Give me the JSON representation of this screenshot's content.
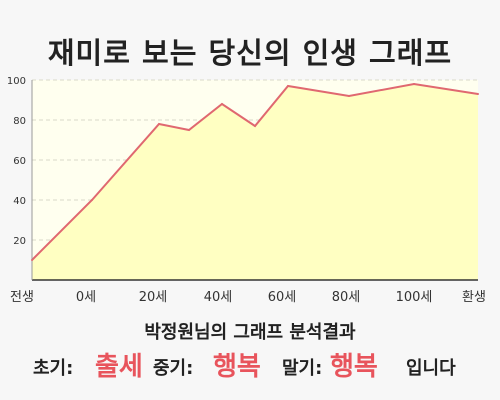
{
  "title": "재미로 보는 당신의 인생 그래프",
  "summary": "박정원님의 그래프 분석결과",
  "result": {
    "early_label": "초기:",
    "early_value": "출세",
    "mid_label": "중기:",
    "mid_value": "행복",
    "late_label": "말기:",
    "late_value": "행복",
    "suffix": "입니다"
  },
  "colors": {
    "line": "#e06870",
    "fill": "#ffffc2",
    "accent": "#e8545c"
  },
  "chart_data": {
    "type": "area",
    "x_ticks": [
      "전생",
      "0세",
      "20세",
      "40세",
      "60세",
      "80세",
      "100세",
      "환생"
    ],
    "y_ticks": [
      20,
      40,
      60,
      80,
      100
    ],
    "ylim": [
      0,
      100
    ],
    "grid": true,
    "points": [
      {
        "x": "전생",
        "y": 10
      },
      {
        "x": "0세",
        "y": 40
      },
      {
        "x": "20세",
        "y": 78
      },
      {
        "x": "30세",
        "y": 75
      },
      {
        "x": "40세",
        "y": 88
      },
      {
        "x": "50세",
        "y": 77
      },
      {
        "x": "60세",
        "y": 97
      },
      {
        "x": "80세",
        "y": 92
      },
      {
        "x": "100세",
        "y": 98
      },
      {
        "x": "환생",
        "y": 93
      }
    ]
  }
}
